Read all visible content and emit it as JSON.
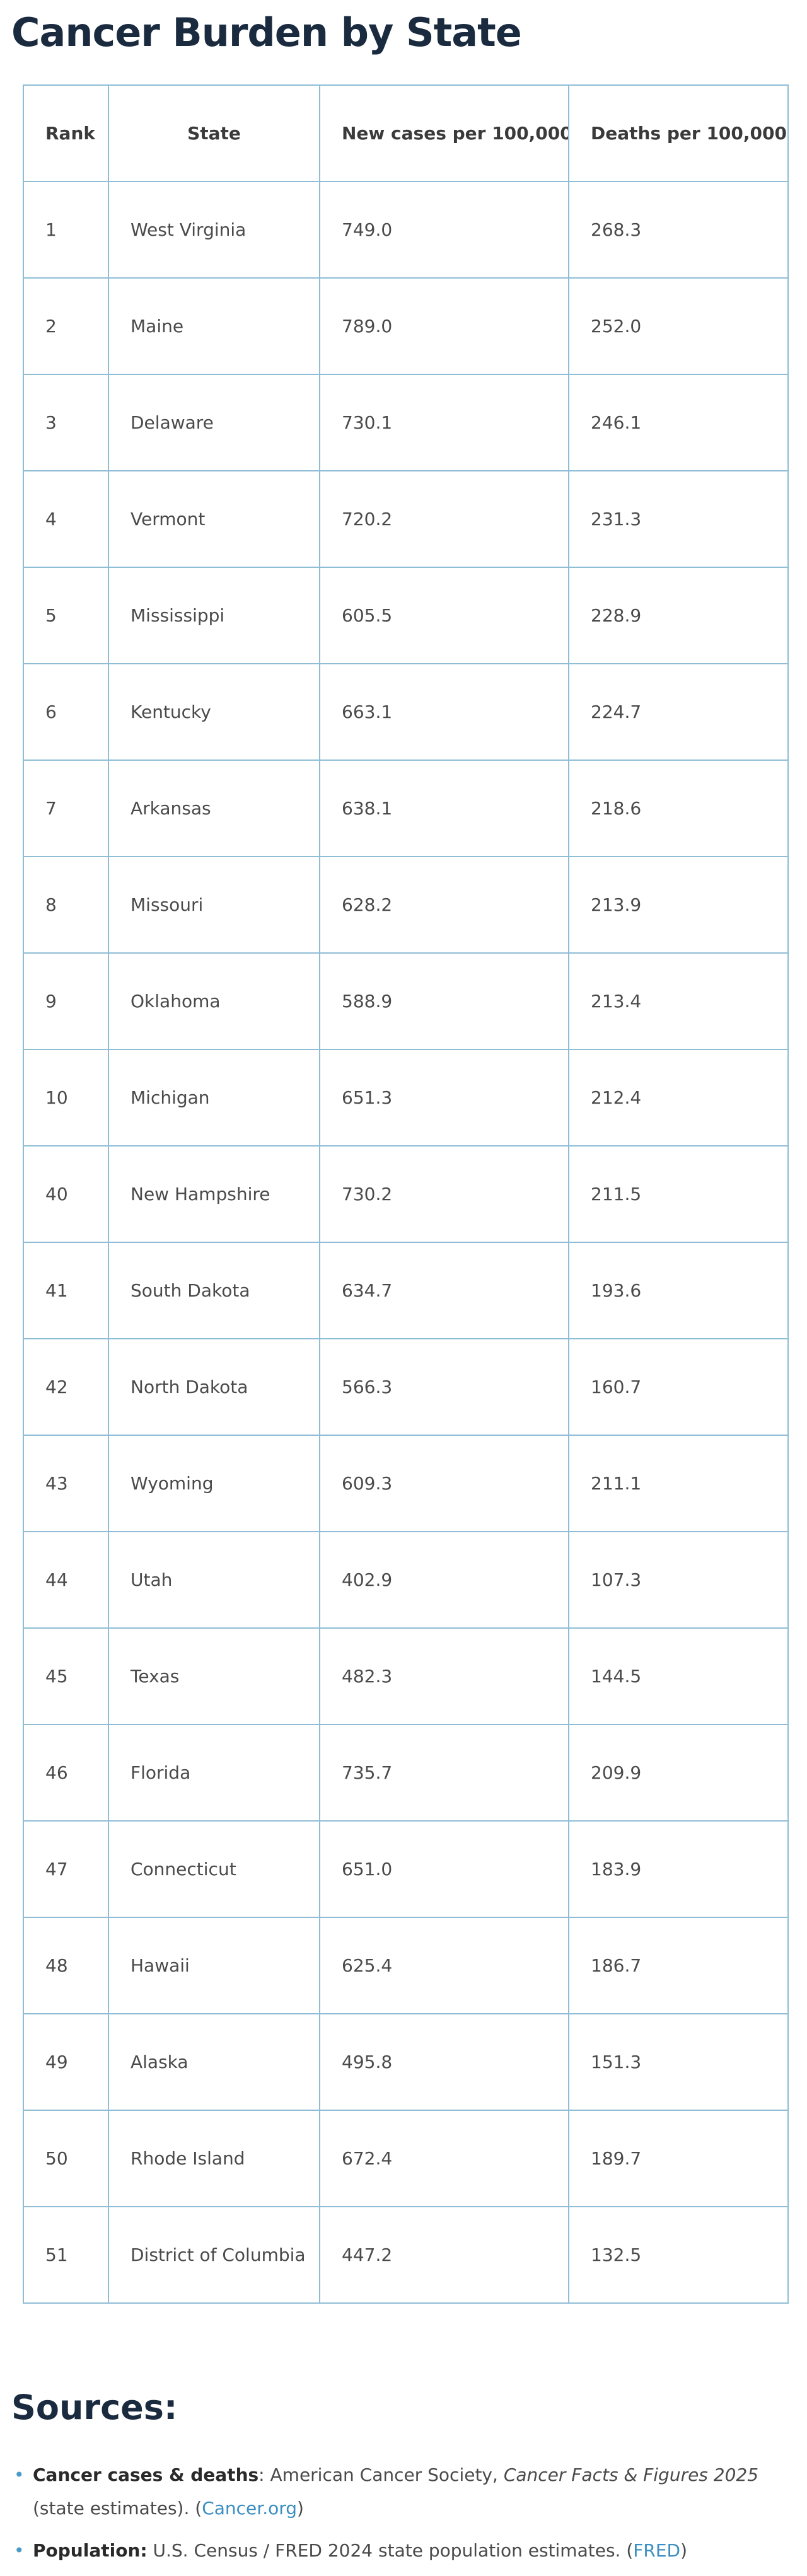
{
  "title": "Cancer Burden by State",
  "table": {
    "headers": {
      "rank": "Rank",
      "state": "State",
      "new_cases": "New cases per 100,000",
      "deaths": "Deaths per 100,000"
    },
    "rows": [
      {
        "rank": "1",
        "state": "West Virginia",
        "new_cases": "749.0",
        "deaths": "268.3"
      },
      {
        "rank": "2",
        "state": "Maine",
        "new_cases": "789.0",
        "deaths": "252.0"
      },
      {
        "rank": "3",
        "state": "Delaware",
        "new_cases": "730.1",
        "deaths": "246.1"
      },
      {
        "rank": "4",
        "state": "Vermont",
        "new_cases": "720.2",
        "deaths": "231.3"
      },
      {
        "rank": "5",
        "state": "Mississippi",
        "new_cases": "605.5",
        "deaths": "228.9"
      },
      {
        "rank": "6",
        "state": "Kentucky",
        "new_cases": "663.1",
        "deaths": "224.7"
      },
      {
        "rank": "7",
        "state": "Arkansas",
        "new_cases": "638.1",
        "deaths": "218.6"
      },
      {
        "rank": "8",
        "state": "Missouri",
        "new_cases": "628.2",
        "deaths": "213.9"
      },
      {
        "rank": "9",
        "state": "Oklahoma",
        "new_cases": "588.9",
        "deaths": "213.4"
      },
      {
        "rank": "10",
        "state": "Michigan",
        "new_cases": "651.3",
        "deaths": "212.4"
      },
      {
        "rank": "40",
        "state": "New Hampshire",
        "new_cases": "730.2",
        "deaths": "211.5"
      },
      {
        "rank": "41",
        "state": "South Dakota",
        "new_cases": "634.7",
        "deaths": "193.6"
      },
      {
        "rank": "42",
        "state": "North Dakota",
        "new_cases": "566.3",
        "deaths": "160.7"
      },
      {
        "rank": "43",
        "state": "Wyoming",
        "new_cases": "609.3",
        "deaths": "211.1"
      },
      {
        "rank": "44",
        "state": "Utah",
        "new_cases": "402.9",
        "deaths": "107.3"
      },
      {
        "rank": "45",
        "state": "Texas",
        "new_cases": "482.3",
        "deaths": "144.5"
      },
      {
        "rank": "46",
        "state": "Florida",
        "new_cases": "735.7",
        "deaths": "209.9"
      },
      {
        "rank": "47",
        "state": "Connecticut",
        "new_cases": "651.0",
        "deaths": "183.9"
      },
      {
        "rank": "48",
        "state": "Hawaii",
        "new_cases": "625.4",
        "deaths": "186.7"
      },
      {
        "rank": "49",
        "state": "Alaska",
        "new_cases": "495.8",
        "deaths": "151.3"
      },
      {
        "rank": "50",
        "state": "Rhode Island",
        "new_cases": "672.4",
        "deaths": "189.7"
      },
      {
        "rank": "51",
        "state": "District of Columbia",
        "new_cases": "447.2",
        "deaths": "132.5"
      }
    ]
  },
  "sources": {
    "heading": "Sources:",
    "items": [
      {
        "label": "Cancer cases & deaths",
        "separator": ": ",
        "text_before": "American Cancer Society, ",
        "publication": "Cancer Facts & Figures 2025",
        "text_after": " (state estimates). (",
        "link_text": "Cancer.org",
        "closing": ")"
      },
      {
        "label": "Population:",
        "separator": " ",
        "text_before": "U.S. Census / FRED 2024 state population estimates. (",
        "publication": "",
        "text_after": "",
        "link_text": "FRED",
        "closing": ")"
      }
    ]
  },
  "colors": {
    "heading": "#1a2a3f",
    "table_border": "#8fbdd6",
    "link": "#3b8fc2",
    "bullet": "#4a9cc7"
  }
}
